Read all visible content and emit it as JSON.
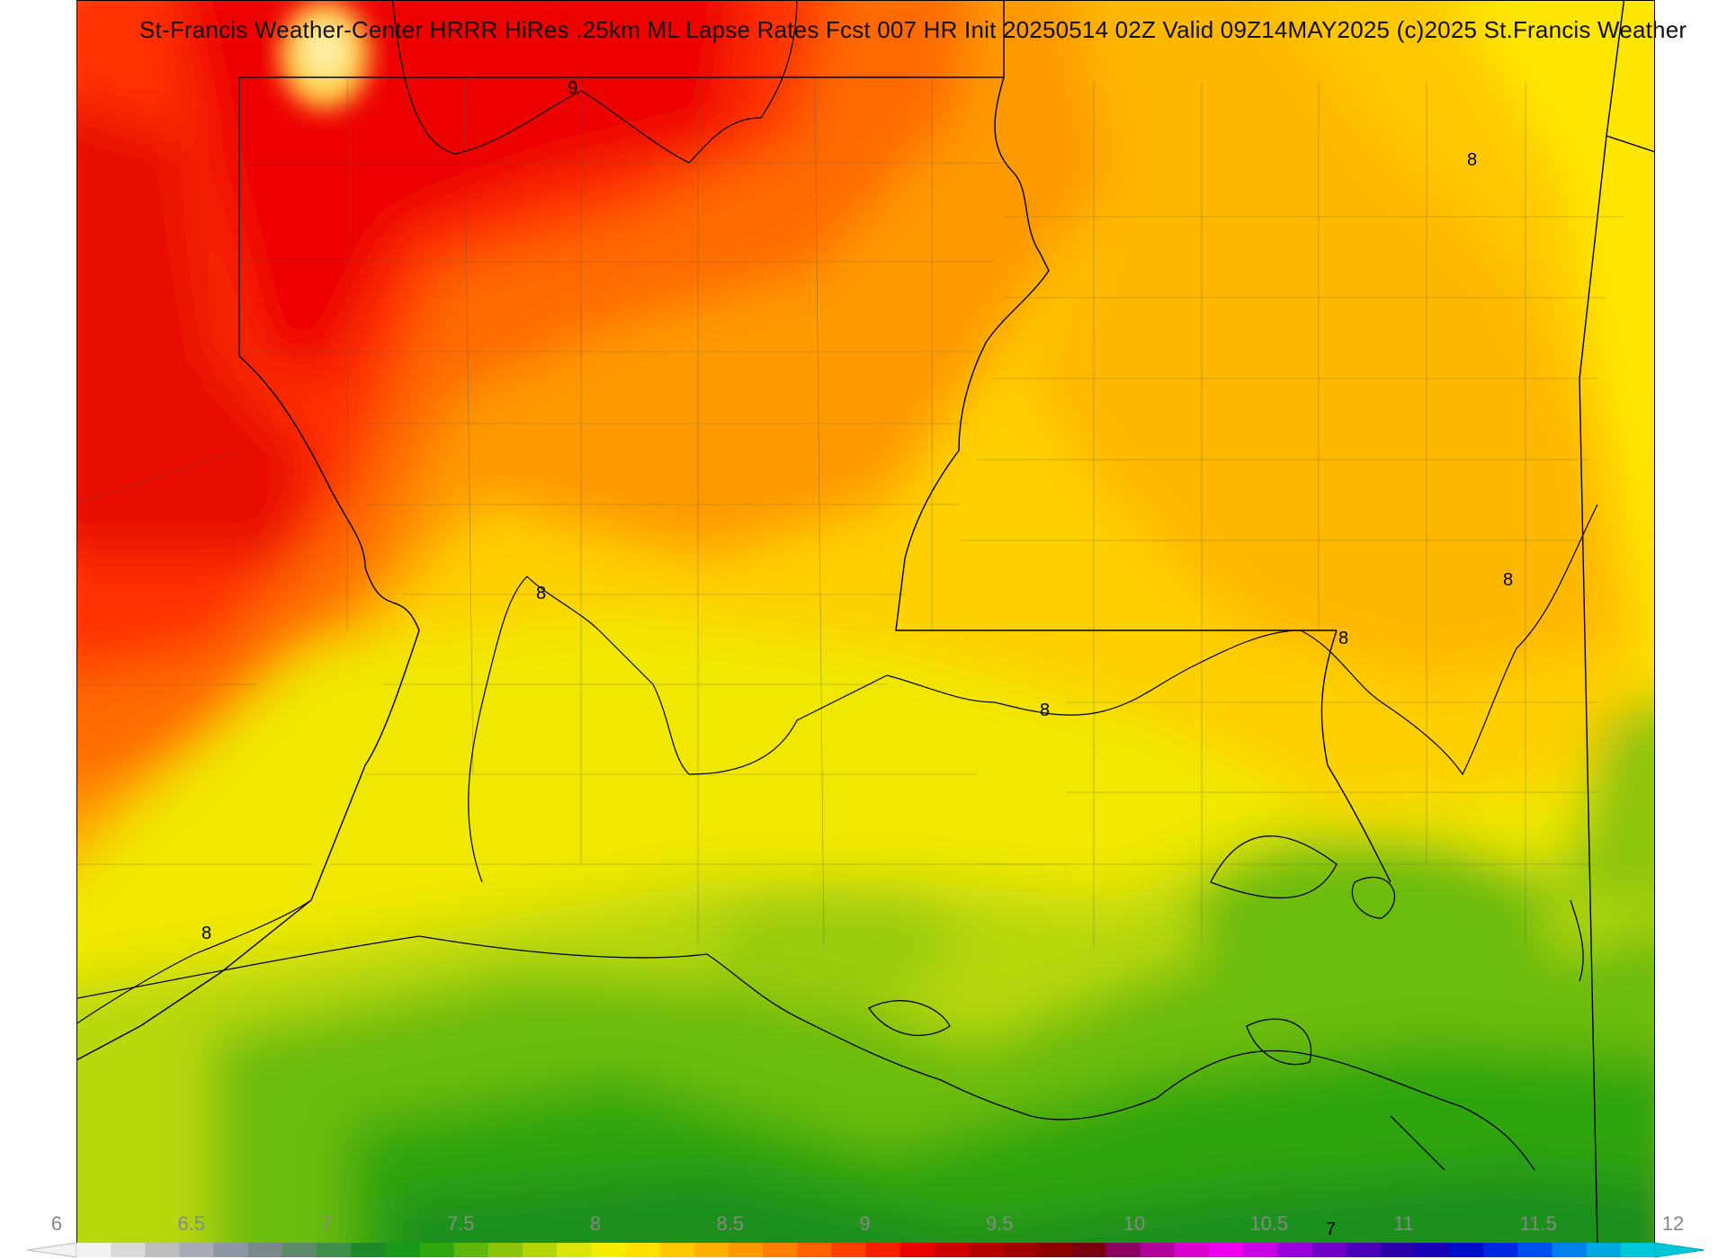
{
  "title": "St-Francis Weather-Center HRRR HiRes .25km ML Lapse Rates  Fcst 007 HR Init 20250514 02Z  Valid 09Z14MAY2025   (c)2025 St.Francis Weather",
  "colorbar": {
    "min": 6,
    "max": 12,
    "tick_labels": [
      "6",
      "6.5",
      "7",
      "7.5",
      "8",
      "8.5",
      "9",
      "9.5",
      "10",
      "10.5",
      "11",
      "11.5",
      "12"
    ],
    "colors": [
      "#f2f2f2",
      "#d9d9d9",
      "#bdbdbd",
      "#a6aab5",
      "#8f96a6",
      "#7a8a8a",
      "#5f8a6a",
      "#3e8f4a",
      "#1f8a2a",
      "#1a9a1a",
      "#2fa80f",
      "#5eb80a",
      "#8cc40a",
      "#b6d40a",
      "#dde60a",
      "#f5ee00",
      "#ffe000",
      "#ffc800",
      "#ffb000",
      "#ff9800",
      "#ff7f00",
      "#ff6200",
      "#ff4000",
      "#f52000",
      "#e80000",
      "#cc0000",
      "#b40000",
      "#a00000",
      "#8c0000",
      "#7a0010",
      "#8a0060",
      "#b0009a",
      "#d800d0",
      "#f000f0",
      "#c800e6",
      "#9a00d8",
      "#7000c8",
      "#4a00b8",
      "#2a00a8",
      "#1800b4",
      "#0010c8",
      "#0028e0",
      "#0050f0",
      "#0080e8",
      "#00a8e0",
      "#00c8d8"
    ]
  },
  "contour_labels": [
    "9",
    "8",
    "8",
    "8",
    "8",
    "8",
    "8",
    "7"
  ],
  "icons": {
    "left_arrow": "colorbar-extend-min-arrow",
    "right_arrow": "colorbar-extend-max-arrow"
  }
}
